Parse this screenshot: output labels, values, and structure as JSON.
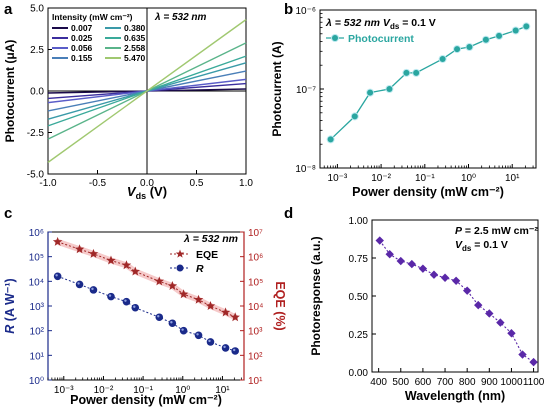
{
  "chart_data": [
    {
      "panel_label": "a",
      "type": "line",
      "xlabel": "V_ds (V)",
      "xlabel_main": "V",
      "xlabel_sub": "ds",
      "xlabel_unit": " (V)",
      "ylabel": "Photocurrent (μA)",
      "xlim": [
        -1.0,
        1.0
      ],
      "ylim": [
        -5.0,
        5.0
      ],
      "xticks": [
        "-1.0",
        "-0.5",
        "0.0",
        "0.5",
        "1.0"
      ],
      "yticks": [
        "-5.0",
        "-2.5",
        "0.0",
        "2.5",
        "5.0"
      ],
      "xtick_values": [
        -1.0,
        -0.5,
        0.0,
        0.5,
        1.0
      ],
      "ytick_values": [
        -5.0,
        -2.5,
        0.0,
        2.5,
        5.0
      ],
      "legend_title": "Intensity (mW cm⁻²)",
      "legend_placement": "top-left",
      "annotation": "λ = 532 nm",
      "x": [
        -1.0,
        1.0
      ],
      "series": [
        {
          "name": "0.007",
          "color": "#1a0a4a",
          "values": [
            -0.12,
            0.12
          ]
        },
        {
          "name": "0.025",
          "color": "#3b2e9e",
          "values": [
            -0.45,
            0.45
          ]
        },
        {
          "name": "0.056",
          "color": "#5a5dc8",
          "values": [
            -0.7,
            0.7
          ]
        },
        {
          "name": "0.155",
          "color": "#4a7fb8",
          "values": [
            -1.2,
            1.2
          ]
        },
        {
          "name": "0.380",
          "color": "#3a9aa8",
          "values": [
            -1.7,
            1.7
          ]
        },
        {
          "name": "0.635",
          "color": "#3aaa9a",
          "values": [
            -2.1,
            2.1
          ]
        },
        {
          "name": "2.558",
          "color": "#5ab48a",
          "values": [
            -2.9,
            2.9
          ]
        },
        {
          "name": "5.470",
          "color": "#a0c870",
          "values": [
            -4.3,
            4.3
          ]
        }
      ]
    },
    {
      "panel_label": "b",
      "type": "line",
      "xlabel": "Power density (mW cm⁻²)",
      "ylabel": "Photocurrent (A)",
      "x_scale": "log",
      "y_scale": "log",
      "xlim": [
        0.0004,
        35
      ],
      "ylim": [
        1e-08,
        1e-06
      ],
      "xtick_values": [
        0.001,
        0.01,
        0.1,
        1,
        10
      ],
      "xticks": [
        "10⁻³",
        "10⁻²",
        "10⁻¹",
        "10⁰",
        "10¹"
      ],
      "ytick_values": [
        1e-08,
        1e-07,
        1e-06
      ],
      "yticks": [
        "10⁻⁸",
        "10⁻⁷",
        "10⁻⁶"
      ],
      "annotation": "λ = 532 nm   V_ds = 0.1 V",
      "annotation_parts": {
        "lambda": "λ = 532 nm",
        "v": "V",
        "sub": "ds",
        "rest": " = 0.1 V"
      },
      "legend_placement": "top-left",
      "series": [
        {
          "name": "Photocurrent",
          "color": "#2aa6a0",
          "x": [
            0.0007,
            0.0025,
            0.0056,
            0.0155,
            0.038,
            0.0635,
            0.2558,
            0.547,
            1.05,
            2.5,
            5.0,
            12.0,
            21.0
          ],
          "values": [
            2.3e-08,
            4.5e-08,
            9e-08,
            1e-07,
            1.6e-07,
            1.6e-07,
            2.4e-07,
            3.2e-07,
            3.4e-07,
            4.2e-07,
            4.7e-07,
            5.5e-07,
            6.2e-07
          ]
        }
      ]
    },
    {
      "panel_label": "c",
      "type": "line",
      "xlabel": "Power density (mW cm⁻²)",
      "ylabel_left": "R (A W⁻¹)",
      "ylabel_right": "EQE (%)",
      "x_scale": "log",
      "y_scale": "log",
      "xlim": [
        0.0004,
        35
      ],
      "xtick_values": [
        0.001,
        0.01,
        0.1,
        1,
        10
      ],
      "xticks": [
        "10⁻³",
        "10⁻²",
        "10⁻¹",
        "10⁰",
        "10¹"
      ],
      "ylim_left": [
        1,
        1000000.0
      ],
      "yticks_left": [
        "10⁰",
        "10¹",
        "10²",
        "10³",
        "10⁴",
        "10⁵",
        "10⁶"
      ],
      "ylim_right": [
        10,
        10000000.0
      ],
      "yticks_right": [
        "10¹",
        "10²",
        "10³",
        "10⁴",
        "10⁵",
        "10⁶",
        "10⁷"
      ],
      "annotation": "λ = 532 nm",
      "legend_placement": "top-right",
      "series": [
        {
          "name": "EQE",
          "axis": "right",
          "marker": "star",
          "color": "#a02828",
          "x": [
            0.0007,
            0.0025,
            0.0056,
            0.0155,
            0.038,
            0.0635,
            0.2558,
            0.547,
            1.05,
            2.5,
            5.0,
            12.0,
            21.0
          ],
          "values": [
            4000000.0,
            2000000.0,
            1300000.0,
            700000.0,
            450000.0,
            250000.0,
            100000.0,
            65000.0,
            30000.0,
            18000.0,
            10000.0,
            5500.0,
            3500.0
          ]
        },
        {
          "name": "R",
          "axis": "left",
          "marker": "circle",
          "color": "#1a2a8a",
          "x": [
            0.0007,
            0.0025,
            0.0056,
            0.0155,
            0.038,
            0.0635,
            0.2558,
            0.547,
            1.05,
            2.5,
            5.0,
            12.0,
            21.0
          ],
          "values": [
            16000.0,
            7500.0,
            4500.0,
            2400.0,
            1500.0,
            850.0,
            350.0,
            200.0,
            100.0,
            65.0,
            35.0,
            20.0,
            15.0
          ]
        }
      ]
    },
    {
      "panel_label": "d",
      "type": "line",
      "xlabel": "Wavelength (nm)",
      "ylabel": "Photoresponse (a.u.)",
      "xlim": [
        370,
        1120
      ],
      "ylim": [
        0.0,
        1.0
      ],
      "xtick_values": [
        400,
        500,
        600,
        700,
        800,
        900,
        1000,
        1100
      ],
      "xticks": [
        "400",
        "500",
        "600",
        "700",
        "800",
        "900",
        "1000",
        "1100"
      ],
      "ytick_values": [
        0.0,
        0.25,
        0.5,
        0.75,
        1.0
      ],
      "yticks": [
        "0.00",
        "0.25",
        "0.50",
        "0.75",
        "1.00"
      ],
      "annotation_line1": "P = 2.5 mW cm⁻²",
      "annotation_line2": "V_ds = 0.1 V",
      "annotation_parts": {
        "p": "P",
        "p_rest": " = 2.5 mW cm⁻²",
        "v": "V",
        "sub": "ds",
        "v_rest": " = 0.1 V"
      },
      "series": [
        {
          "name": "",
          "color": "#5a28a8",
          "marker": "diamond",
          "x": [
            405,
            450,
            500,
            550,
            600,
            650,
            700,
            750,
            800,
            850,
            900,
            950,
            1000,
            1050,
            1100
          ],
          "values": [
            0.865,
            0.775,
            0.73,
            0.71,
            0.68,
            0.64,
            0.62,
            0.6,
            0.535,
            0.44,
            0.385,
            0.325,
            0.255,
            0.115,
            0.065
          ]
        }
      ]
    }
  ]
}
